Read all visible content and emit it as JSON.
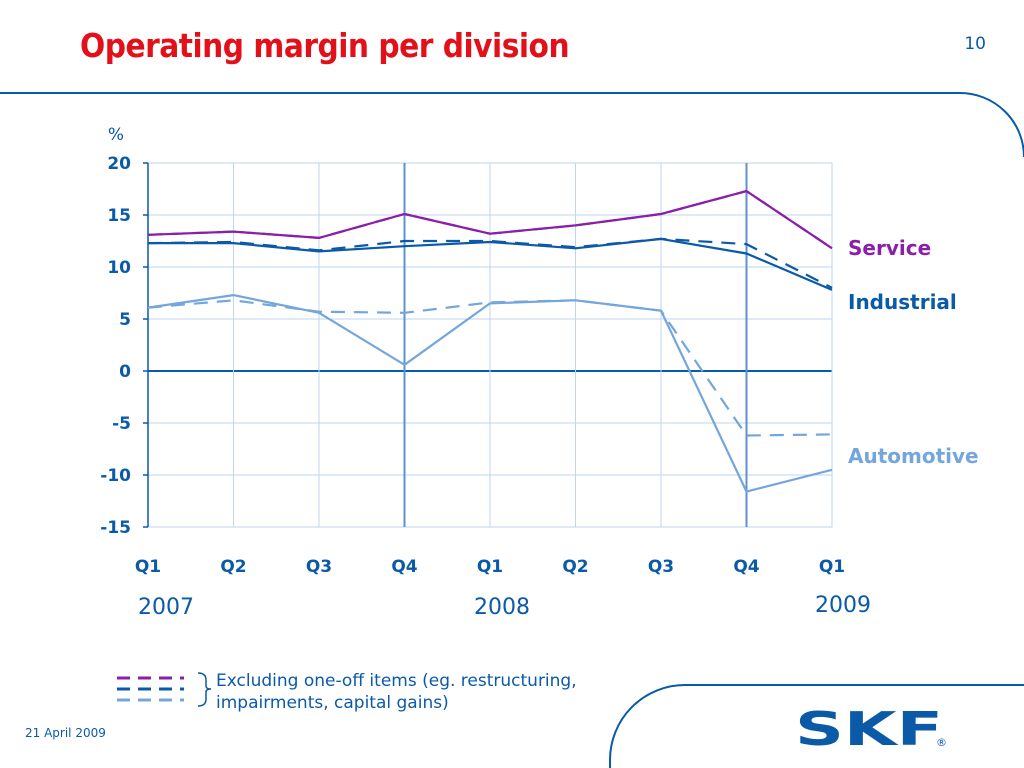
{
  "slide": {
    "title": "Operating margin per division",
    "page_number": "10",
    "date": "21 April 2009",
    "footnote": "Excluding one-off items (eg. restructuring, impairments, capital gains)",
    "logo_text": "SKF",
    "logo_mark": "®"
  },
  "chart_data": {
    "type": "line",
    "ylabel": "%",
    "ylim": [
      -15,
      20
    ],
    "yticks": [
      20,
      15,
      10,
      5,
      0,
      -5,
      -10,
      -15
    ],
    "categories": [
      "Q1",
      "Q2",
      "Q3",
      "Q4",
      "Q1",
      "Q2",
      "Q3",
      "Q4",
      "Q1"
    ],
    "years": [
      {
        "label": "2007",
        "category_index": 0
      },
      {
        "label": "2008",
        "category_index": 4
      },
      {
        "label": "2009",
        "category_index": 8
      }
    ],
    "grid": true,
    "series": [
      {
        "name": "Service",
        "style": "solid",
        "color": "#8b1fa9",
        "values": [
          13.1,
          13.4,
          12.8,
          15.1,
          13.2,
          14.0,
          15.1,
          17.3,
          11.8
        ]
      },
      {
        "name": "Service",
        "style": "dashed",
        "color": "#8b1fa9",
        "values": [
          13.1,
          13.4,
          12.8,
          15.1,
          13.2,
          14.0,
          15.1,
          17.3,
          11.8
        ]
      },
      {
        "name": "Industrial",
        "style": "solid",
        "color": "#0a5aa8",
        "values": [
          12.3,
          12.3,
          11.5,
          12.0,
          12.4,
          11.8,
          12.7,
          11.3,
          7.8
        ]
      },
      {
        "name": "Industrial",
        "style": "dashed",
        "color": "#0a5aa8",
        "values": [
          12.3,
          12.4,
          11.6,
          12.5,
          12.5,
          11.9,
          12.7,
          12.2,
          8.0
        ]
      },
      {
        "name": "Automotive",
        "style": "solid",
        "color": "#74a6dc",
        "values": [
          6.1,
          7.3,
          5.6,
          0.6,
          6.5,
          6.8,
          5.8,
          -11.6,
          -9.5
        ]
      },
      {
        "name": "Automotive",
        "style": "dashed",
        "color": "#74a6dc",
        "values": [
          6.1,
          6.8,
          5.7,
          5.6,
          6.6,
          6.8,
          5.8,
          -6.2,
          -6.1
        ]
      }
    ],
    "legend_labels": [
      "Service",
      "Industrial",
      "Automotive"
    ]
  },
  "colors": {
    "title": "#e3101a",
    "brand_blue": "#0a5aa8",
    "service": "#8b1fa9",
    "industrial": "#0a5aa8",
    "automotive": "#74a6dc",
    "grid": "#bcd6ee"
  }
}
